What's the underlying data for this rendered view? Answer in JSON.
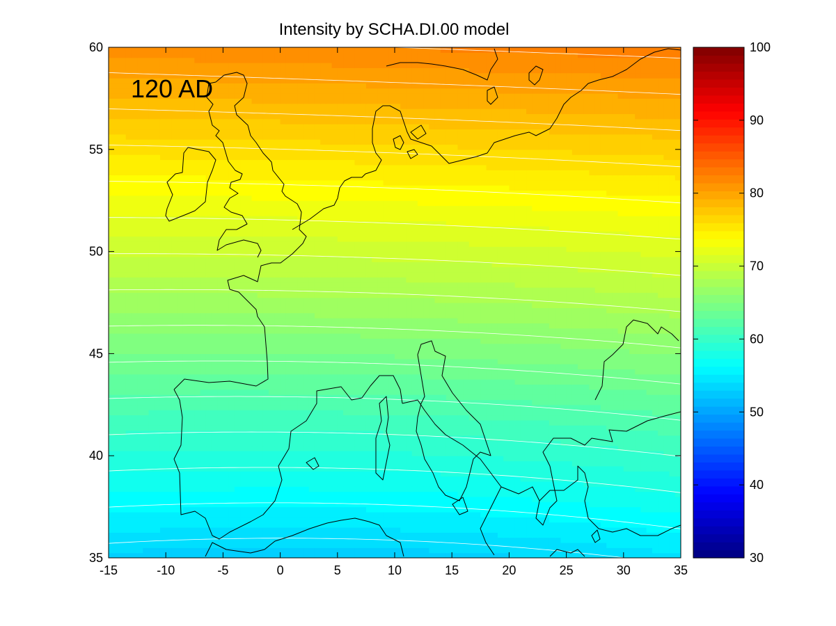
{
  "chart_data": {
    "type": "heatmap",
    "title": "Intensity by SCHA.DI.00 model",
    "annotation": "120 AD",
    "xlim": [
      -15,
      35
    ],
    "ylim": [
      35,
      60
    ],
    "xticks": [
      -15,
      -10,
      -5,
      0,
      5,
      10,
      15,
      20,
      25,
      30,
      35
    ],
    "yticks": [
      35,
      40,
      45,
      50,
      55,
      60
    ],
    "colorbar": {
      "min": 30,
      "max": 100,
      "ticks": [
        30,
        40,
        50,
        60,
        70,
        80,
        90,
        100
      ],
      "colormap": "jet"
    },
    "field": {
      "description": "intensity increases northward, contours curved (higher toward the east at a given latitude in the south)",
      "samples": [
        {
          "lon": -15,
          "lat": 35,
          "value": 53
        },
        {
          "lon": 10,
          "lat": 35,
          "value": 53
        },
        {
          "lon": 35,
          "lat": 35,
          "value": 54
        },
        {
          "lon": 10,
          "lat": 40,
          "value": 59
        },
        {
          "lon": 10,
          "lat": 45,
          "value": 64
        },
        {
          "lon": 10,
          "lat": 50,
          "value": 70
        },
        {
          "lon": 10,
          "lat": 55,
          "value": 76
        },
        {
          "lon": 10,
          "lat": 60,
          "value": 82
        }
      ]
    },
    "contour_color": "#ffffff",
    "coastline_color": "#000000",
    "grid": false
  }
}
